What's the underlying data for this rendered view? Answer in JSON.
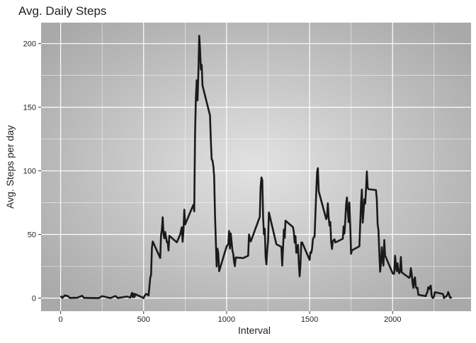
{
  "chart_data": {
    "type": "line",
    "title": "Avg. Daily Steps",
    "x_label": "Interval",
    "y_label": "Avg. Steps per day",
    "x": [
      0,
      10,
      25,
      45,
      55,
      100,
      130,
      140,
      200,
      230,
      250,
      300,
      330,
      345,
      400,
      420,
      430,
      435,
      440,
      445,
      450,
      500,
      505,
      515,
      530,
      540,
      545,
      550,
      555,
      600,
      605,
      610,
      615,
      620,
      625,
      630,
      640,
      645,
      650,
      655,
      700,
      720,
      730,
      735,
      740,
      745,
      750,
      800,
      805,
      810,
      815,
      820,
      825,
      830,
      835,
      840,
      845,
      850,
      855,
      900,
      905,
      910,
      915,
      920,
      925,
      930,
      935,
      940,
      945,
      950,
      955,
      1000,
      1010,
      1015,
      1020,
      1025,
      1030,
      1035,
      1040,
      1045,
      1050,
      1055,
      1100,
      1130,
      1135,
      1145,
      1150,
      1200,
      1205,
      1210,
      1215,
      1220,
      1225,
      1230,
      1235,
      1240,
      1245,
      1250,
      1255,
      1300,
      1330,
      1335,
      1340,
      1345,
      1350,
      1355,
      1400,
      1405,
      1410,
      1415,
      1420,
      1425,
      1430,
      1435,
      1440,
      1445,
      1450,
      1455,
      1500,
      1505,
      1510,
      1515,
      1520,
      1525,
      1530,
      1535,
      1540,
      1545,
      1550,
      1555,
      1600,
      1605,
      1610,
      1615,
      1620,
      1625,
      1630,
      1635,
      1640,
      1645,
      1650,
      1655,
      1700,
      1705,
      1710,
      1715,
      1720,
      1725,
      1730,
      1735,
      1740,
      1745,
      1750,
      1755,
      1800,
      1805,
      1810,
      1815,
      1820,
      1825,
      1830,
      1835,
      1840,
      1845,
      1850,
      1855,
      1900,
      1905,
      1910,
      1915,
      1920,
      1925,
      1930,
      1935,
      1940,
      1945,
      1950,
      1955,
      2000,
      2005,
      2010,
      2015,
      2020,
      2025,
      2030,
      2035,
      2040,
      2045,
      2050,
      2055,
      2100,
      2105,
      2110,
      2115,
      2120,
      2125,
      2130,
      2135,
      2140,
      2145,
      2150,
      2155,
      2200,
      2205,
      2210,
      2215,
      2220,
      2225,
      2230,
      2235,
      2240,
      2245,
      2250,
      2255,
      2300,
      2305,
      2310,
      2315,
      2320,
      2325,
      2330,
      2335,
      2340,
      2345,
      2350,
      2355
    ],
    "series": [
      {
        "name": "Avg. Steps",
        "color": "#1a1a1a",
        "values": [
          1.7,
          0.1,
          2.1,
          1.5,
          0.1,
          0.3,
          1.8,
          0.2,
          0,
          0,
          1.5,
          0,
          1.6,
          0.1,
          1.2,
          0.4,
          4.1,
          0.7,
          3.5,
          0.8,
          3.1,
          0,
          1.6,
          3.3,
          2.1,
          16,
          18.3,
          39.5,
          44.5,
          31.5,
          49.3,
          53.8,
          63.5,
          50,
          47,
          52,
          44,
          44.2,
          37.4,
          49,
          43.8,
          49.9,
          55.7,
          44.3,
          52.3,
          69.5,
          57.8,
          73.4,
          68.2,
          129.4,
          157.5,
          171.2,
          155.4,
          177.3,
          206.2,
          195.9,
          179.6,
          183.4,
          167,
          143.5,
          124,
          109.1,
          108.1,
          103.7,
          95.9,
          66.2,
          45.2,
          24.8,
          38.8,
          35,
          21.1,
          40.6,
          42.4,
          52.7,
          38.9,
          50.8,
          44.3,
          37.4,
          34.7,
          28.3,
          25.1,
          31.9,
          31.4,
          33.3,
          50,
          44.5,
          46,
          63.9,
          87.7,
          94.8,
          92.8,
          63.4,
          50.2,
          54.5,
          32.4,
          26.5,
          37.7,
          45.1,
          67.3,
          42.3,
          40.2,
          25.5,
          39.4,
          53.9,
          47.3,
          60.8,
          55.8,
          51.9,
          43.6,
          48.7,
          35.5,
          37.5,
          41.8,
          27.5,
          17.1,
          26.1,
          43.6,
          43.8,
          30,
          36.1,
          35.5,
          38.8,
          46,
          47.8,
          48.1,
          65.3,
          82.9,
          98.7,
          102.1,
          84,
          62.1,
          64.1,
          74.5,
          63.2,
          56.9,
          59.8,
          43.9,
          38.6,
          44.7,
          45.5,
          46.2,
          43.7,
          46.6,
          56.3,
          50.7,
          61.2,
          73.4,
          79.1,
          68.9,
          59.7,
          75.1,
          56.5,
          34.8,
          37.5,
          40.7,
          58,
          74.7,
          85.3,
          59.3,
          67.8,
          77.7,
          74.2,
          85.3,
          99.5,
          86.6,
          85.6,
          84.9,
          77.8,
          58,
          53.4,
          36.3,
          20.7,
          27.4,
          40,
          30.2,
          25.5,
          45.7,
          33.5,
          19.6,
          19,
          19.3,
          33.3,
          26.8,
          21.2,
          27.3,
          21.3,
          19.5,
          21.3,
          32.3,
          20.2,
          15.9,
          17.2,
          23.5,
          19.2,
          12.5,
          8,
          14.7,
          16.3,
          8.7,
          7.8,
          8.1,
          2.6,
          1.5,
          3.7,
          4.8,
          8.5,
          7.1,
          8.7,
          9.8,
          2.2,
          0.3,
          0.1,
          1.6,
          4.6,
          3.3,
          2.8,
          0,
          0.8,
          1,
          1.6,
          2.6,
          4.7,
          3.3,
          0.6,
          0.2,
          1.1
        ]
      }
    ],
    "xlim": [
      -117.75,
      2472.75
    ],
    "ylim": [
      -10.3,
      216.5
    ],
    "xticks": [
      0,
      500,
      1000,
      1500,
      2000
    ],
    "yticks": [
      0,
      50,
      100,
      150,
      200
    ],
    "x_minor_ticks": [
      250,
      750,
      1250,
      1750,
      2250
    ],
    "y_minor_ticks": [
      25,
      75,
      125,
      175
    ],
    "grid": true
  }
}
